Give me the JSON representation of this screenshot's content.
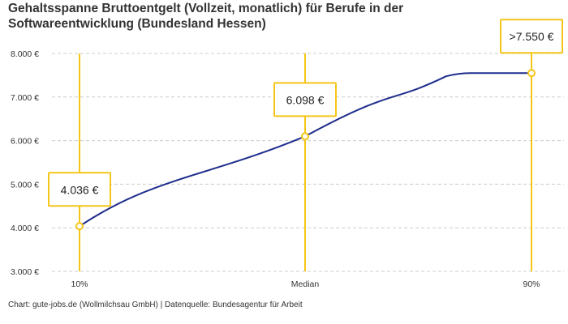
{
  "chart_data": {
    "type": "line",
    "title": "Gehaltsspanne Bruttoentgelt (Vollzeit, monatlich) für Berufe in der Softwareentwicklung (Bundesland Hessen)",
    "categories": [
      "10%",
      "Median",
      "90%"
    ],
    "values": [
      4036,
      6098,
      7550
    ],
    "data_labels": [
      "4.036 €",
      "6.098 €",
      ">7.550 €"
    ],
    "ylim": [
      3000,
      8000
    ],
    "yticks": [
      3000,
      4000,
      5000,
      6000,
      7000,
      8000
    ],
    "ytick_labels": [
      "3.000 €",
      "4.000 €",
      "5.000 €",
      "6.000 €",
      "7.000 €",
      "8.000 €"
    ],
    "grid": "horizontal dashed",
    "colors": {
      "line": "#1f2e8c",
      "marker": "#f5c518",
      "grid": "#cccccc"
    },
    "xlabel": "",
    "ylabel": ""
  },
  "footer": "Chart: gute-jobs.de (Wollmilchsau GmbH) | Datenquelle: Bundesagentur für Arbeit"
}
